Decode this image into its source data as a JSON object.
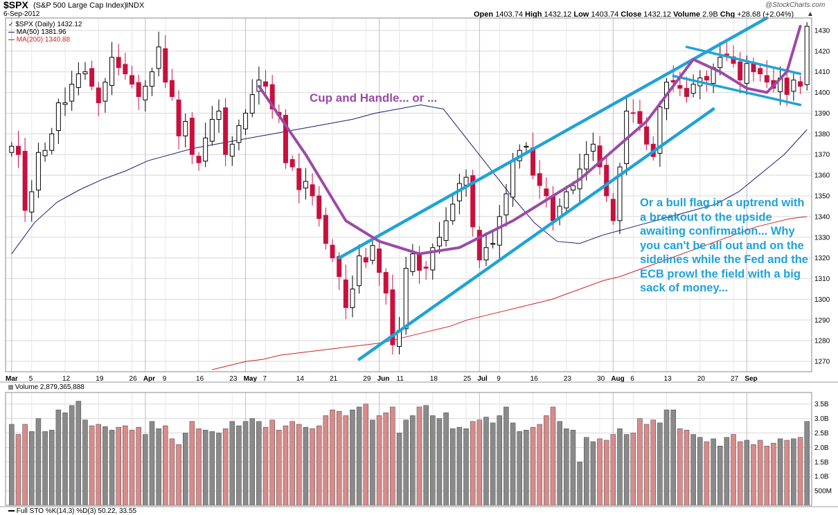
{
  "header": {
    "symbol": "$SPX",
    "name": "(S&P 500 Large Cap Index)",
    "exchange": "INDX",
    "date": "6-Sep-2012",
    "open_label": "Open",
    "open": "1403.74",
    "high_label": "High",
    "high": "1432.12",
    "low_label": "Low",
    "low": "1403.74",
    "close_label": "Close",
    "close": "1432.12",
    "volume_label": "Volume",
    "volume": "2.9B",
    "chg_label": "Chg",
    "chg": "+28.68 (+2.04%)",
    "chg_arrow": "▲",
    "watermark": "@StockCharts.com"
  },
  "legend": {
    "price": "$SPX (Daily) 1432.12",
    "ma50": "MA(50) 1381.96",
    "ma200": "MA(200) 1340.88",
    "volume": "Volume 2,879,365,888",
    "sto": "Full STO %K(14,3) %D(3) 50.22, 33.55"
  },
  "annotations": {
    "cup": "Cup and Handle... or ...",
    "flag": "Or a bull flag in a uptrend with\na breakout to the upside\nawaiting confirmation... Why\nyou can't be all out and on the\nsidelines while the Fed and the\nECB prowl the field with a big\nsack of money..."
  },
  "colors": {
    "up": "#ffffff",
    "down": "#c8103e",
    "ma50": "#1a1a6e",
    "ma200": "#d42020",
    "cup": "#9b4aa6",
    "channel": "#1fa3d8",
    "vol_up": "#8a8a8a",
    "vol_down": "#d98a8a",
    "grid": "#d8d8d8"
  },
  "chart_data": {
    "type": "candlestick",
    "title": "$SPX (S&P 500 Large Cap Index) INDX",
    "ylim": [
      1265,
      1436
    ],
    "y_ticks": [
      1270,
      1280,
      1290,
      1300,
      1310,
      1320,
      1330,
      1340,
      1350,
      1360,
      1370,
      1380,
      1390,
      1400,
      1410,
      1420,
      1430
    ],
    "x_tick_labels": [
      "Mar",
      "5",
      "12",
      "19",
      "26",
      "Apr",
      "9",
      "16",
      "23",
      "May",
      "7",
      "14",
      "21",
      "29",
      "Jun",
      "11",
      "18",
      "25",
      "Jul",
      "9",
      "16",
      "23",
      "30",
      "Aug",
      "6",
      "13",
      "20",
      "27",
      "Sep"
    ],
    "x_tick_major": [
      "Mar",
      "Apr",
      "May",
      "Jun",
      "Jul",
      "Aug",
      "Sep"
    ],
    "close": [
      1374,
      1370,
      1343,
      1352,
      1371,
      1372,
      1380,
      1395,
      1395,
      1404,
      1409,
      1410,
      1403,
      1395,
      1405,
      1417,
      1412,
      1409,
      1404,
      1398,
      1403,
      1410,
      1422,
      1405,
      1398,
      1379,
      1386,
      1370,
      1366,
      1378,
      1387,
      1391,
      1370,
      1375,
      1384,
      1390,
      1399,
      1406,
      1403,
      1392,
      1389,
      1366,
      1364,
      1353,
      1357,
      1350,
      1339,
      1327,
      1320,
      1311,
      1296,
      1305,
      1321,
      1318,
      1326,
      1313,
      1303,
      1278,
      1285,
      1315,
      1322,
      1314,
      1315,
      1325,
      1330,
      1338,
      1346,
      1356,
      1359,
      1335,
      1319,
      1325,
      1327,
      1340,
      1351,
      1367,
      1372,
      1374,
      1360,
      1355,
      1350,
      1338,
      1345,
      1352,
      1355,
      1363,
      1370,
      1375,
      1364,
      1350,
      1338,
      1364,
      1391,
      1390,
      1385,
      1375,
      1369,
      1393,
      1405,
      1405,
      1402,
      1398,
      1404,
      1407,
      1406,
      1412,
      1417,
      1418,
      1414,
      1406,
      1414,
      1410,
      1409,
      1405,
      1402,
      1407,
      1399,
      1406,
      1403,
      1432
    ],
    "volume_ylim": [
      0,
      3.9
    ],
    "volume_ticks": [
      "500M",
      "1.0B",
      "1.5B",
      "2.0B",
      "2.5B",
      "3.0B",
      "3.5B"
    ],
    "volume_tick_values": [
      0.5,
      1.0,
      1.5,
      2.0,
      2.5,
      3.0,
      3.5
    ],
    "volume": [
      2.8,
      2.45,
      2.8,
      2.55,
      3.0,
      2.55,
      2.6,
      3.3,
      3.2,
      3.45,
      3.6,
      2.95,
      2.75,
      2.8,
      2.72,
      2.6,
      2.7,
      2.75,
      2.6,
      2.7,
      2.45,
      2.9,
      2.65,
      2.75,
      2.3,
      2.1,
      2.5,
      2.9,
      2.65,
      2.6,
      2.55,
      2.5,
      2.65,
      2.9,
      2.75,
      2.9,
      3.0,
      2.9,
      2.7,
      2.95,
      2.6,
      2.75,
      2.9,
      2.8,
      2.7,
      2.65,
      2.75,
      3.1,
      3.3,
      3.25,
      3.1,
      3.3,
      3.4,
      3.5,
      2.95,
      3.1,
      3.2,
      3.4,
      2.5,
      2.95,
      3.1,
      3.4,
      3.45,
      3.1,
      3.0,
      3.2,
      2.65,
      2.7,
      2.65,
      2.9,
      2.95,
      3.05,
      2.85,
      3.1,
      3.4,
      2.85,
      2.55,
      2.6,
      2.7,
      2.8,
      3.1,
      3.4,
      2.9,
      2.65,
      2.6,
      1.5,
      2.35,
      2.2,
      2.3,
      2.25,
      2.45,
      2.65,
      2.45,
      2.5,
      3.0,
      2.8,
      2.95,
      2.85,
      3.3,
      3.3,
      2.65,
      2.6,
      2.45,
      2.35,
      2.2,
      2.3,
      2.05,
      2.35,
      2.45,
      2.2,
      2.25,
      2.1,
      2.25,
      2.05,
      2.15,
      2.3,
      2.25,
      2.3,
      2.35,
      2.9
    ],
    "series": [
      {
        "name": "MA(50) 1381.96",
        "type": "line",
        "start_index": 0,
        "values": [
          1322,
          1337,
          1347,
          1353,
          1358,
          1362,
          1367,
          1370,
          1373,
          1375,
          1377,
          1379,
          1381,
          1383,
          1385,
          1387,
          1390,
          1392,
          1394,
          1392,
          1378,
          1364,
          1350,
          1337,
          1328,
          1327,
          1331,
          1334,
          1337,
          1340,
          1343,
          1346,
          1352,
          1361,
          1370,
          1382
        ]
      },
      {
        "name": "MA(200) 1340.88",
        "type": "line",
        "start_index": 30,
        "values": [
          1266,
          1268,
          1270,
          1271,
          1273,
          1274,
          1275,
          1276,
          1277,
          1278,
          1279,
          1281,
          1283,
          1285,
          1287,
          1290,
          1292,
          1294,
          1296,
          1298,
          1300,
          1303,
          1306,
          1309,
          1311,
          1314,
          1317,
          1320,
          1323,
          1326,
          1329,
          1332,
          1335,
          1337,
          1339,
          1340
        ]
      }
    ]
  }
}
